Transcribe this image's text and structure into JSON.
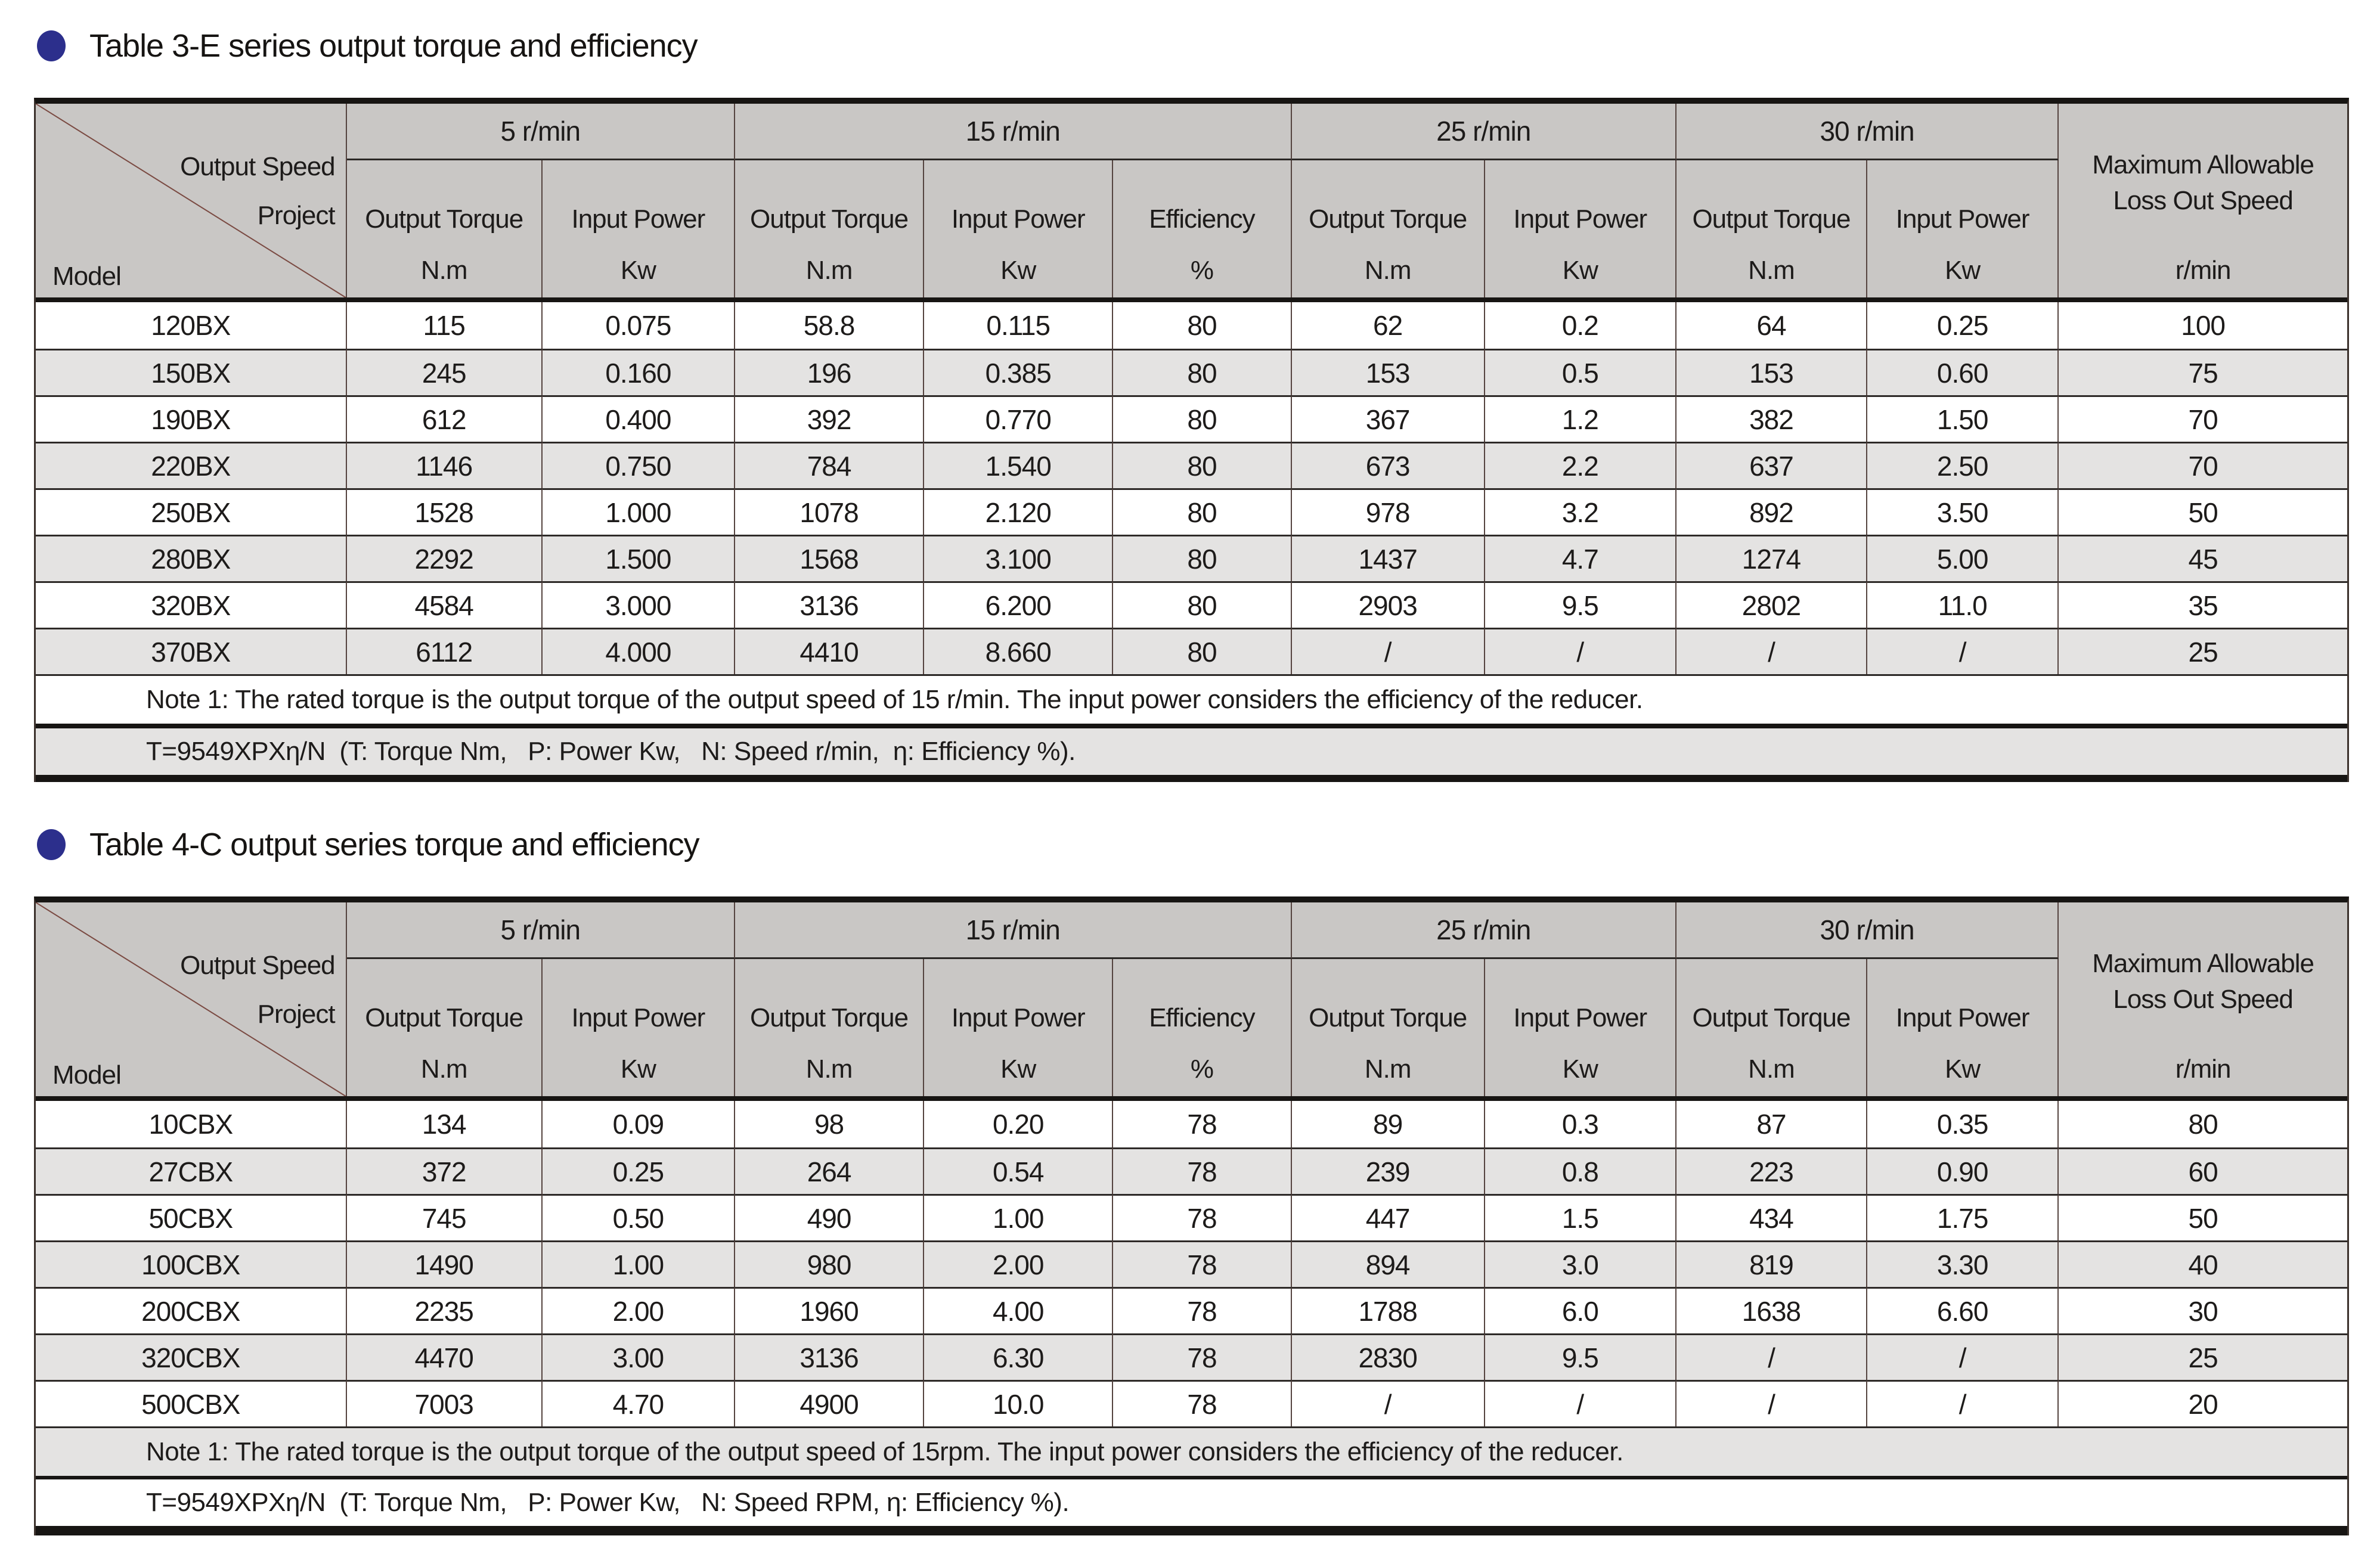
{
  "page": {
    "bullet_color": "#2c2f8c",
    "header_bg": "#c9c7c5",
    "stripe_bg": "#e4e3e2",
    "bar_color": "#171513"
  },
  "tables": [
    {
      "title": "Table 3-E series output torque and efficiency",
      "corner": {
        "top_label_line1": "Output Speed",
        "top_label_line2": "Project",
        "bottom_label": "Model"
      },
      "groups": [
        {
          "label": "5 r/min",
          "cols": [
            {
              "label": "Output Torque",
              "unit": "N.m"
            },
            {
              "label": "Input Power",
              "unit": "Kw"
            }
          ]
        },
        {
          "label": "15 r/min",
          "cols": [
            {
              "label": "Output Torque",
              "unit": "N.m"
            },
            {
              "label": "Input Power",
              "unit": "Kw"
            },
            {
              "label": "Efficiency",
              "unit": "%"
            }
          ]
        },
        {
          "label": "25 r/min",
          "cols": [
            {
              "label": "Output Torque",
              "unit": "N.m"
            },
            {
              "label": "Input Power",
              "unit": "Kw"
            }
          ]
        },
        {
          "label": "30 r/min",
          "cols": [
            {
              "label": "Output Torque",
              "unit": "N.m"
            },
            {
              "label": "Input Power",
              "unit": "Kw"
            }
          ]
        }
      ],
      "last_col": {
        "label_lines": [
          "Maximum Allowable",
          "Loss Out Speed"
        ],
        "unit": "r/min"
      },
      "rows": [
        {
          "model": "120BX",
          "values": [
            "115",
            "0.075",
            "58.8",
            "0.115",
            "80",
            "62",
            "0.2",
            "64",
            "0.25",
            "100"
          ]
        },
        {
          "model": "150BX",
          "values": [
            "245",
            "0.160",
            "196",
            "0.385",
            "80",
            "153",
            "0.5",
            "153",
            "0.60",
            "75"
          ]
        },
        {
          "model": "190BX",
          "values": [
            "612",
            "0.400",
            "392",
            "0.770",
            "80",
            "367",
            "1.2",
            "382",
            "1.50",
            "70"
          ]
        },
        {
          "model": "220BX",
          "values": [
            "1146",
            "0.750",
            "784",
            "1.540",
            "80",
            "673",
            "2.2",
            "637",
            "2.50",
            "70"
          ]
        },
        {
          "model": "250BX",
          "values": [
            "1528",
            "1.000",
            "1078",
            "2.120",
            "80",
            "978",
            "3.2",
            "892",
            "3.50",
            "50"
          ]
        },
        {
          "model": "280BX",
          "values": [
            "2292",
            "1.500",
            "1568",
            "3.100",
            "80",
            "1437",
            "4.7",
            "1274",
            "5.00",
            "45"
          ]
        },
        {
          "model": "320BX",
          "values": [
            "4584",
            "3.000",
            "3136",
            "6.200",
            "80",
            "2903",
            "9.5",
            "2802",
            "11.0",
            "35"
          ]
        },
        {
          "model": "370BX",
          "values": [
            "6112",
            "4.000",
            "4410",
            "8.660",
            "80",
            "/",
            "/",
            "/",
            "/",
            "25"
          ]
        }
      ],
      "note": "Note 1: The rated torque is the output torque of the output speed of 15 r/min. The input power considers the efficiency of the reducer.",
      "formula": "T=9549XPXη/N  (T: Torque Nm,   P: Power Kw,   N: Speed r/min,  η: Efficiency %).",
      "note_shaded": false,
      "formula_shaded": true
    },
    {
      "title": "Table 4-C output series torque and efficiency",
      "corner": {
        "top_label_line1": "Output Speed",
        "top_label_line2": "Project",
        "bottom_label": "Model"
      },
      "groups": [
        {
          "label": "5 r/min",
          "cols": [
            {
              "label": "Output Torque",
              "unit": "N.m"
            },
            {
              "label": "Input Power",
              "unit": "Kw"
            }
          ]
        },
        {
          "label": "15 r/min",
          "cols": [
            {
              "label": "Output Torque",
              "unit": "N.m"
            },
            {
              "label": "Input Power",
              "unit": "Kw"
            },
            {
              "label": "Efficiency",
              "unit": "%"
            }
          ]
        },
        {
          "label": "25 r/min",
          "cols": [
            {
              "label": "Output Torque",
              "unit": "N.m"
            },
            {
              "label": "Input Power",
              "unit": "Kw"
            }
          ]
        },
        {
          "label": "30 r/min",
          "cols": [
            {
              "label": "Output Torque",
              "unit": "N.m"
            },
            {
              "label": "Input Power",
              "unit": "Kw"
            }
          ]
        }
      ],
      "last_col": {
        "label_lines": [
          "Maximum Allowable",
          "Loss Out Speed"
        ],
        "unit": "r/min"
      },
      "rows": [
        {
          "model": "10CBX",
          "values": [
            "134",
            "0.09",
            "98",
            "0.20",
            "78",
            "89",
            "0.3",
            "87",
            "0.35",
            "80"
          ]
        },
        {
          "model": "27CBX",
          "values": [
            "372",
            "0.25",
            "264",
            "0.54",
            "78",
            "239",
            "0.8",
            "223",
            "0.90",
            "60"
          ]
        },
        {
          "model": "50CBX",
          "values": [
            "745",
            "0.50",
            "490",
            "1.00",
            "78",
            "447",
            "1.5",
            "434",
            "1.75",
            "50"
          ]
        },
        {
          "model": "100CBX",
          "values": [
            "1490",
            "1.00",
            "980",
            "2.00",
            "78",
            "894",
            "3.0",
            "819",
            "3.30",
            "40"
          ]
        },
        {
          "model": "200CBX",
          "values": [
            "2235",
            "2.00",
            "1960",
            "4.00",
            "78",
            "1788",
            "6.0",
            "1638",
            "6.60",
            "30"
          ]
        },
        {
          "model": "320CBX",
          "values": [
            "4470",
            "3.00",
            "3136",
            "6.30",
            "78",
            "2830",
            "9.5",
            "/",
            "/",
            "25"
          ]
        },
        {
          "model": "500CBX",
          "values": [
            "7003",
            "4.70",
            "4900",
            "10.0",
            "78",
            "/",
            "/",
            "/",
            "/",
            "20"
          ]
        }
      ],
      "note": "Note 1: The rated torque is the output torque of the output speed of 15rpm. The input power considers the efficiency of the reducer.",
      "formula": "T=9549XPXη/N  (T: Torque Nm,   P: Power Kw,   N: Speed RPM, η: Efficiency %).",
      "note_shaded": true,
      "formula_shaded": false
    }
  ]
}
